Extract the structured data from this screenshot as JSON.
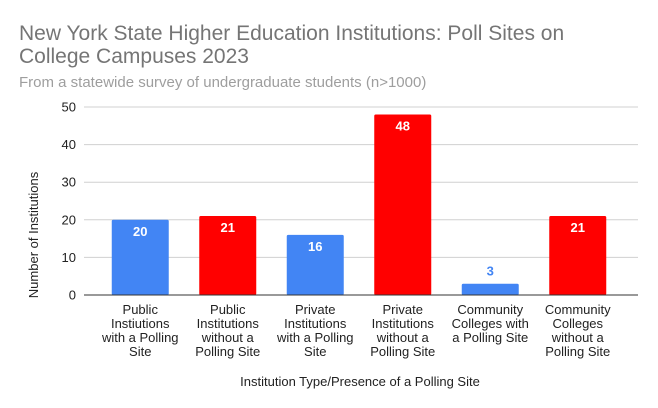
{
  "chart_data": {
    "type": "bar",
    "title_lines": [
      "New York State Higher Education Institutions: Poll Sites on",
      "College Campuses 2023"
    ],
    "subtitle": "From a statewide survey of undergraduate students (n>1000)",
    "xlabel": "Institution Type/Presence of a Polling Site",
    "ylabel": "Number of Institutions",
    "ylim": [
      0,
      50
    ],
    "yticks": [
      0,
      10,
      20,
      30,
      40,
      50
    ],
    "grid": true,
    "categories": [
      [
        "Public",
        "Instiutions",
        "with a Polling",
        "Site"
      ],
      [
        "Public",
        "Institutions",
        "without a",
        "Polling Site"
      ],
      [
        "Private",
        "Institutions",
        "with a Polling",
        "Site"
      ],
      [
        "Private",
        "Institutions",
        "without a",
        "Polling Site"
      ],
      [
        "Community",
        "Colleges with",
        "a Polling Site"
      ],
      [
        "Community",
        "Colleges",
        "without a",
        "Polling Site"
      ]
    ],
    "values": [
      20,
      21,
      16,
      48,
      3,
      21
    ],
    "colors": [
      "#4285f4",
      "#ff0000",
      "#4285f4",
      "#ff0000",
      "#4285f4",
      "#ff0000"
    ]
  }
}
